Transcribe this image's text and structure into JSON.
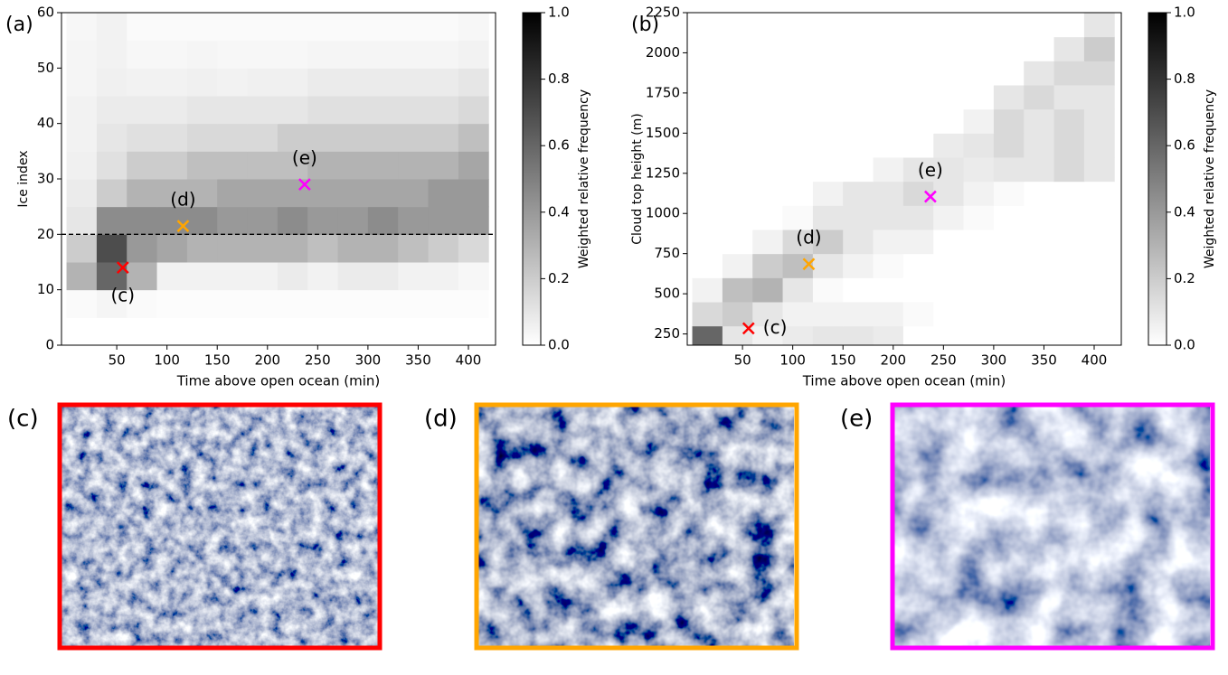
{
  "chart_data": [
    {
      "type": "heatmap",
      "panel_label": "(a)",
      "xlabel": "Time above open ocean (min)",
      "ylabel": "Ice index",
      "xlim": [
        -5,
        427
      ],
      "ylim": [
        0,
        60
      ],
      "xticks": [
        50,
        100,
        150,
        200,
        250,
        300,
        350,
        400
      ],
      "yticks": [
        0,
        10,
        20,
        30,
        40,
        50,
        60
      ],
      "xbins": [
        0,
        30,
        60,
        90,
        120,
        150,
        180,
        210,
        240,
        270,
        300,
        330,
        360,
        390,
        420
      ],
      "ybins": [
        0,
        5,
        10,
        15,
        20,
        25,
        30,
        35,
        40,
        45,
        50,
        55,
        60
      ],
      "z": [
        [
          0,
          0,
          0,
          0,
          0,
          0,
          0,
          0,
          0,
          0,
          0,
          0,
          0,
          0
        ],
        [
          0.02,
          0.04,
          0.02,
          0.01,
          0.01,
          0.01,
          0.01,
          0.01,
          0.01,
          0.01,
          0.01,
          0.01,
          0.01,
          0.01
        ],
        [
          0.3,
          0.6,
          0.3,
          0.05,
          0.05,
          0.05,
          0.05,
          0.08,
          0.05,
          0.08,
          0.08,
          0.05,
          0.05,
          0.03
        ],
        [
          0.2,
          0.7,
          0.4,
          0.35,
          0.3,
          0.3,
          0.3,
          0.3,
          0.25,
          0.3,
          0.3,
          0.25,
          0.2,
          0.15
        ],
        [
          0.1,
          0.45,
          0.45,
          0.45,
          0.45,
          0.4,
          0.4,
          0.45,
          0.4,
          0.4,
          0.45,
          0.4,
          0.4,
          0.4
        ],
        [
          0.08,
          0.2,
          0.3,
          0.3,
          0.3,
          0.35,
          0.35,
          0.35,
          0.35,
          0.35,
          0.35,
          0.35,
          0.4,
          0.4
        ],
        [
          0.06,
          0.12,
          0.2,
          0.2,
          0.25,
          0.25,
          0.25,
          0.25,
          0.3,
          0.3,
          0.3,
          0.3,
          0.3,
          0.35
        ],
        [
          0.05,
          0.1,
          0.12,
          0.12,
          0.15,
          0.15,
          0.15,
          0.2,
          0.2,
          0.2,
          0.2,
          0.2,
          0.2,
          0.25
        ],
        [
          0.05,
          0.08,
          0.08,
          0.08,
          0.1,
          0.1,
          0.1,
          0.1,
          0.12,
          0.12,
          0.12,
          0.12,
          0.12,
          0.15
        ],
        [
          0.04,
          0.06,
          0.05,
          0.05,
          0.06,
          0.05,
          0.06,
          0.06,
          0.08,
          0.08,
          0.08,
          0.08,
          0.08,
          0.1
        ],
        [
          0.04,
          0.05,
          0.03,
          0.03,
          0.04,
          0.03,
          0.03,
          0.03,
          0.04,
          0.04,
          0.04,
          0.04,
          0.04,
          0.05
        ],
        [
          0.03,
          0.05,
          0.02,
          0.02,
          0.02,
          0.02,
          0.02,
          0.02,
          0.02,
          0.02,
          0.02,
          0.02,
          0.02,
          0.03
        ]
      ],
      "hline": 20,
      "colorbar": {
        "label": "Weighted relative frequency",
        "lim": [
          0,
          1
        ],
        "ticks": [
          {
            "value": 0,
            "label": "0.0"
          },
          {
            "value": 0.2,
            "label": "0.2"
          },
          {
            "value": 0.4,
            "label": "0.4"
          },
          {
            "value": 0.6,
            "label": "0.6"
          },
          {
            "value": 0.8,
            "label": "0.8"
          },
          {
            "value": 1,
            "label": "1.0"
          }
        ]
      },
      "markers": [
        {
          "label": "(c)",
          "x": 56,
          "y": 14,
          "color": "#ff0000"
        },
        {
          "label": "(d)",
          "x": 116,
          "y": 21.5,
          "color": "#ffa500"
        },
        {
          "label": "(e)",
          "x": 237,
          "y": 29,
          "color": "#ff00ff"
        }
      ]
    },
    {
      "type": "heatmap",
      "panel_label": "(b)",
      "xlabel": "Time above open ocean (min)",
      "ylabel": "Cloud top height (m)",
      "xlim": [
        -5,
        427
      ],
      "ylim": [
        180,
        2250
      ],
      "xticks": [
        50,
        100,
        150,
        200,
        250,
        300,
        350,
        400
      ],
      "yticks": [
        250,
        500,
        750,
        1000,
        1250,
        1500,
        1750,
        2000,
        2250
      ],
      "xbins": [
        0,
        30,
        60,
        90,
        120,
        150,
        180,
        210,
        240,
        270,
        300,
        330,
        360,
        390,
        420
      ],
      "ybins": [
        150,
        300,
        450,
        600,
        750,
        900,
        1050,
        1200,
        1350,
        1500,
        1650,
        1800,
        1950,
        2100,
        2250
      ],
      "z": [
        [
          0.6,
          0.1,
          0.05,
          0.08,
          0.1,
          0.1,
          0.08,
          0,
          0,
          0,
          0,
          0,
          0,
          0
        ],
        [
          0.15,
          0.2,
          0.1,
          0.05,
          0.05,
          0.05,
          0.05,
          0.02,
          0,
          0,
          0,
          0,
          0,
          0
        ],
        [
          0.05,
          0.25,
          0.3,
          0.1,
          0.02,
          0,
          0,
          0,
          0,
          0,
          0,
          0,
          0,
          0
        ],
        [
          0,
          0.05,
          0.2,
          0.25,
          0.1,
          0.05,
          0.02,
          0,
          0,
          0,
          0,
          0,
          0,
          0
        ],
        [
          0,
          0,
          0.05,
          0.15,
          0.2,
          0.1,
          0.05,
          0.05,
          0,
          0,
          0,
          0,
          0,
          0
        ],
        [
          0,
          0,
          0,
          0.02,
          0.1,
          0.1,
          0.1,
          0.1,
          0.05,
          0.02,
          0,
          0,
          0,
          0
        ],
        [
          0,
          0,
          0,
          0,
          0.05,
          0.1,
          0.1,
          0.15,
          0.1,
          0.05,
          0.02,
          0,
          0,
          0
        ],
        [
          0,
          0,
          0,
          0,
          0,
          0,
          0.05,
          0.1,
          0.1,
          0.08,
          0.1,
          0.1,
          0.15,
          0.1
        ],
        [
          0,
          0,
          0,
          0,
          0,
          0,
          0,
          0,
          0.08,
          0.1,
          0.15,
          0.1,
          0.15,
          0.1
        ],
        [
          0,
          0,
          0,
          0,
          0,
          0,
          0,
          0,
          0,
          0.05,
          0.15,
          0.1,
          0.15,
          0.1
        ],
        [
          0,
          0,
          0,
          0,
          0,
          0,
          0,
          0,
          0,
          0,
          0.1,
          0.15,
          0.1,
          0.1
        ],
        [
          0,
          0,
          0,
          0,
          0,
          0,
          0,
          0,
          0,
          0,
          0,
          0.1,
          0.15,
          0.15
        ],
        [
          0,
          0,
          0,
          0,
          0,
          0,
          0,
          0,
          0,
          0,
          0,
          0,
          0.1,
          0.2
        ],
        [
          0,
          0,
          0,
          0,
          0,
          0,
          0,
          0,
          0,
          0,
          0,
          0,
          0,
          0.1
        ]
      ],
      "colorbar": {
        "label": "Weighted relative frequency",
        "lim": [
          0,
          1
        ],
        "ticks": [
          {
            "value": 0,
            "label": "0.0"
          },
          {
            "value": 0.2,
            "label": "0.2"
          },
          {
            "value": 0.4,
            "label": "0.4"
          },
          {
            "value": 0.6,
            "label": "0.6"
          },
          {
            "value": 0.8,
            "label": "0.8"
          },
          {
            "value": 1,
            "label": "1.0"
          }
        ]
      },
      "markers": [
        {
          "label": "(c)",
          "x": 56,
          "y": 285,
          "color": "#ff0000"
        },
        {
          "label": "(d)",
          "x": 116,
          "y": 685,
          "color": "#ffa500"
        },
        {
          "label": "(e)",
          "x": 237,
          "y": 1105,
          "color": "#ff00ff"
        }
      ]
    }
  ],
  "photos": [
    {
      "label": "(c)",
      "color": "#ff0000"
    },
    {
      "label": "(d)",
      "color": "#ffa500"
    },
    {
      "label": "(e)",
      "color": "#ff00ff"
    }
  ]
}
